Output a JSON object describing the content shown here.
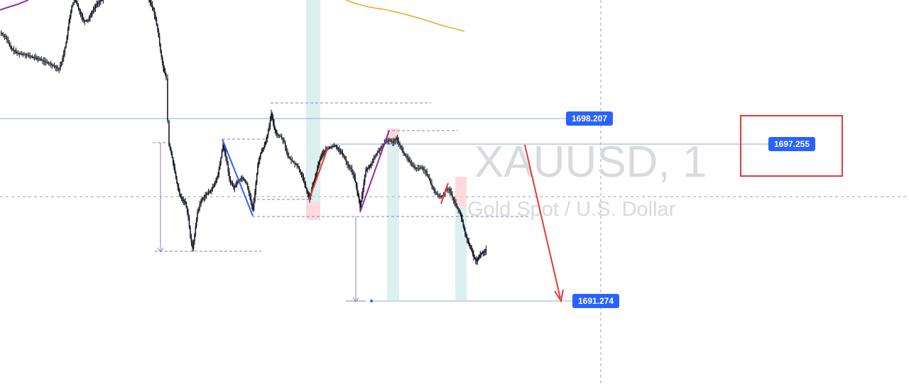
{
  "watermark": {
    "symbol": "XAUUSD, 1",
    "description": "Gold Spot / U.S. Dollar"
  },
  "price_labels": {
    "upper": "1698.207",
    "mid": "1697.255",
    "target": "1691.274"
  },
  "colors": {
    "candle": "#131722",
    "price_tag_bg": "#2962ff",
    "price_line": "#8fa9e0",
    "highlight_box": "#e53935",
    "arrow": "#e53935",
    "ma_line": "#f5a623",
    "ma_purple": "#9c27b0",
    "zone_green": "#b2dfdb",
    "zone_red": "#ffcdd2",
    "impulse_blue": "#2962ff",
    "impulse_red": "#e53935",
    "impulse_purple": "#9c27b0",
    "measure": "#9575cd",
    "dashed_level": "#7e7ec0",
    "crosshair": "#9aa0ab"
  },
  "chart_data": {
    "type": "candlestick",
    "symbol": "XAUUSD",
    "interval": "1",
    "description": "Gold Spot / U.S. Dollar",
    "horizontal_levels": [
      1698.207,
      1697.255,
      1691.274
    ],
    "annotations": [
      {
        "kind": "highlight_box",
        "around_price": 1697.255
      },
      {
        "kind": "down_arrow",
        "target_price": 1691.274
      }
    ]
  }
}
